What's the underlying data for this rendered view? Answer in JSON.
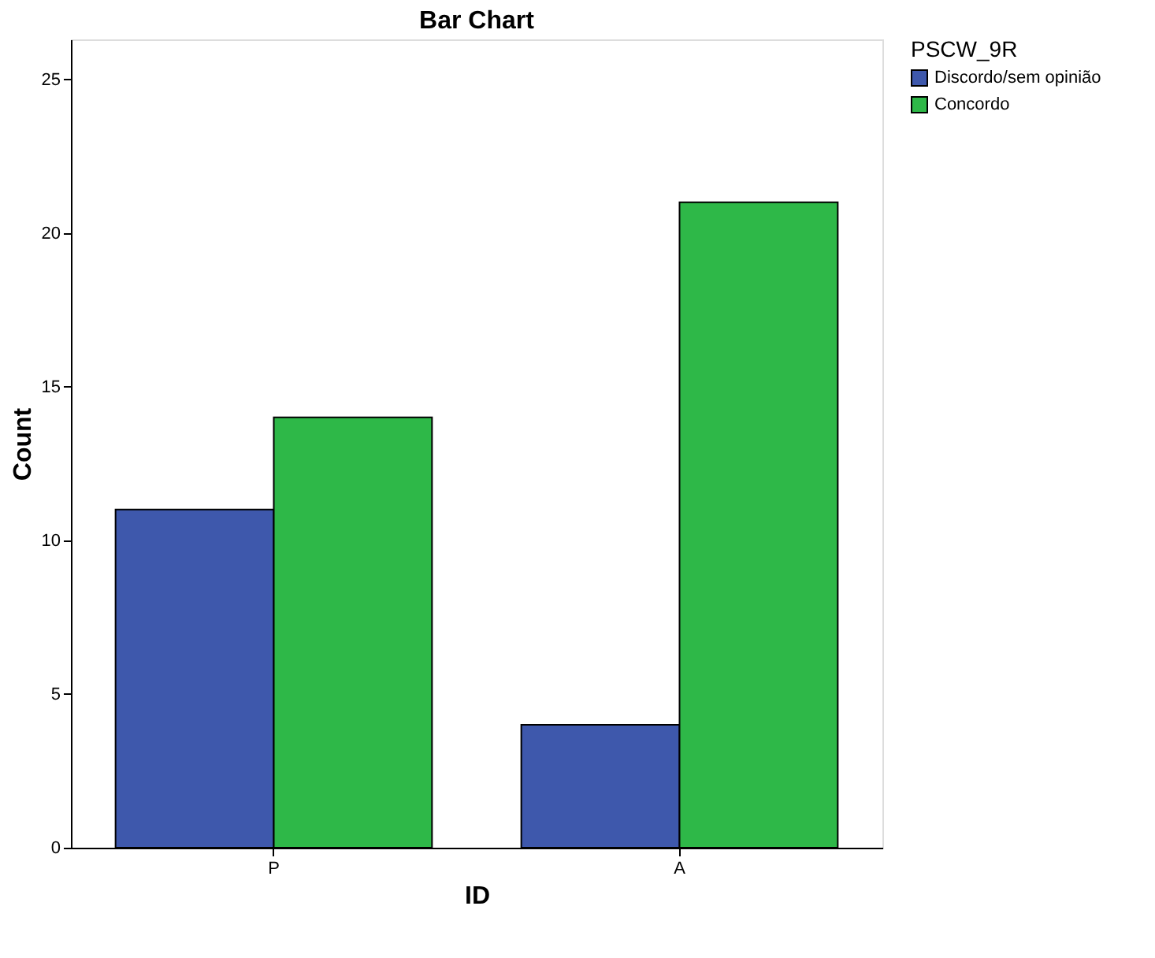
{
  "chart_data": {
    "type": "bar",
    "title": "Bar Chart",
    "xlabel": "ID",
    "ylabel": "Count",
    "legend_title": "PSCW_9R",
    "categories": [
      "P",
      "A"
    ],
    "series": [
      {
        "name": "Discordo/sem opinião",
        "color": "#3e58ac",
        "values": [
          11,
          4
        ]
      },
      {
        "name": "Concordo",
        "color": "#2eb848",
        "values": [
          14,
          21
        ]
      }
    ],
    "ylim": [
      0,
      26.3
    ],
    "yticks": [
      0,
      5,
      10,
      15,
      20,
      25
    ],
    "grid": false,
    "legend": "top right"
  }
}
